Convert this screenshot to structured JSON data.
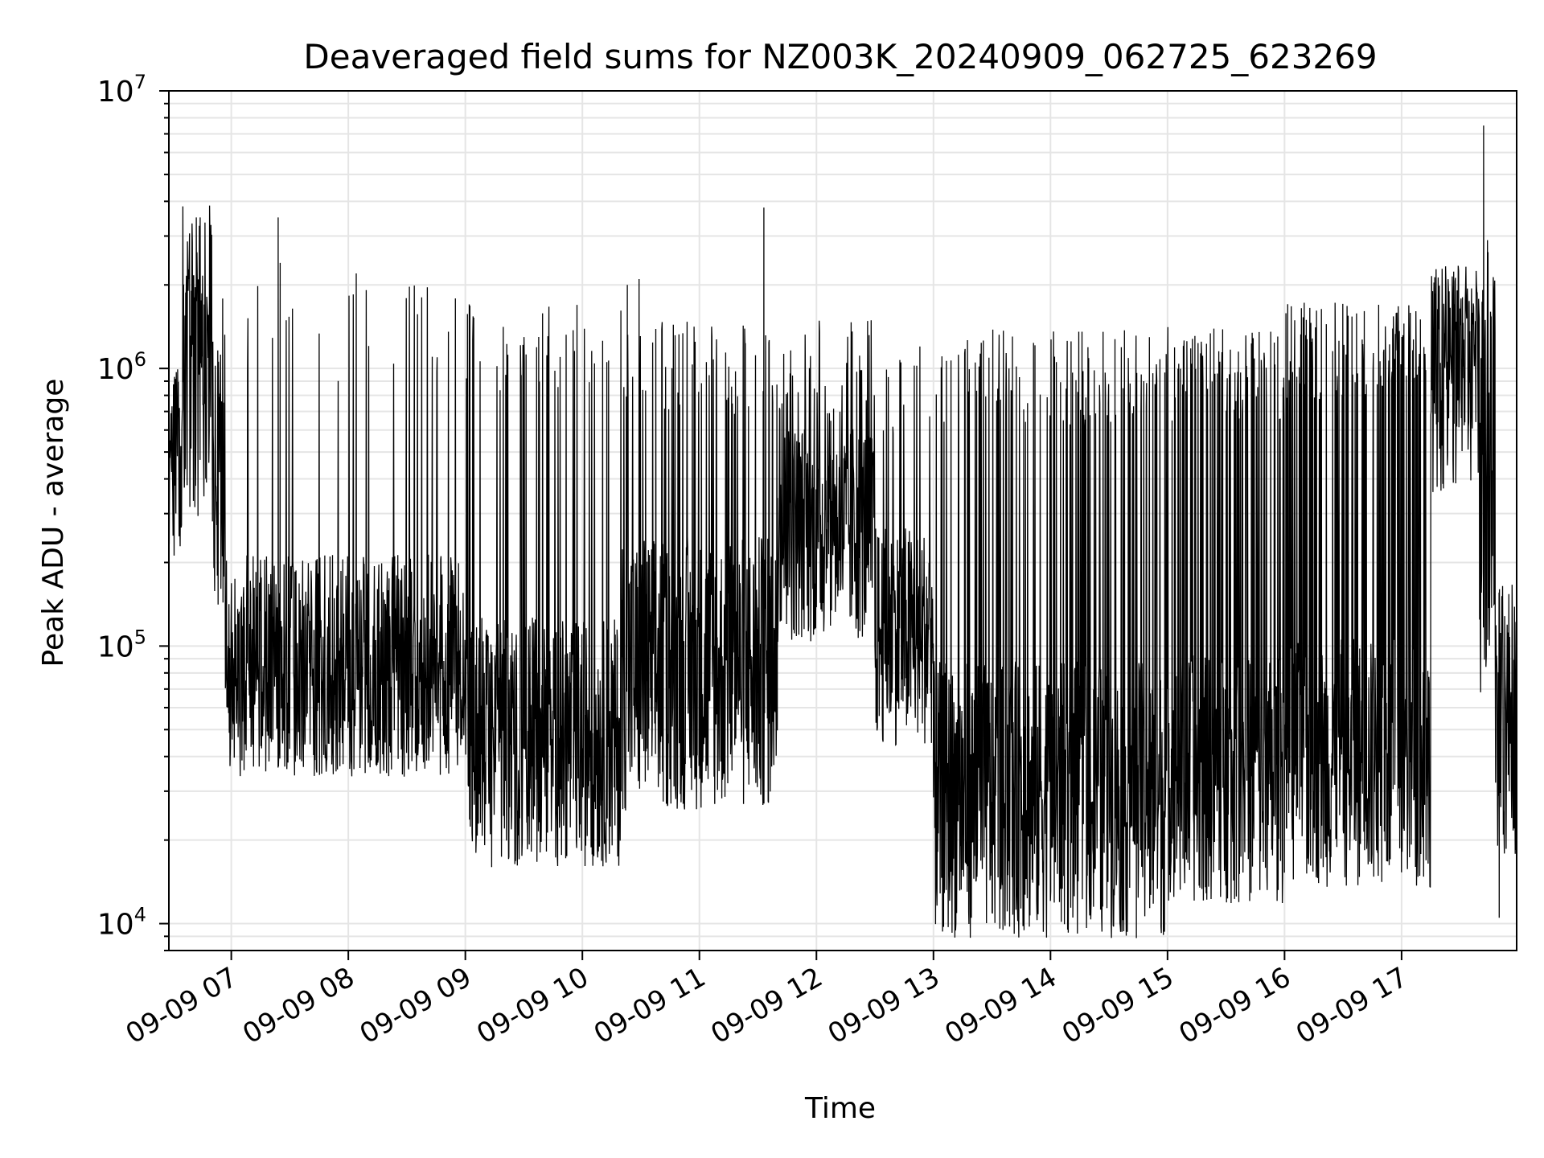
{
  "chart_data": {
    "type": "line",
    "title": "Deaveraged field sums for NZ003K_20240909_062725_623269",
    "xlabel": "Time",
    "ylabel": "Peak ADU - average",
    "yscale": "log",
    "ylim": [
      8000,
      10000000
    ],
    "xlim": [
      "2024-09-09 06:28",
      "2024-09-09 17:59"
    ],
    "grid": true,
    "line_color": "#000000",
    "grid_color": "#e5e5e5",
    "x_ticks": [
      {
        "value": "2024-09-09 07:00",
        "label": "09-09 07"
      },
      {
        "value": "2024-09-09 08:00",
        "label": "09-09 08"
      },
      {
        "value": "2024-09-09 09:00",
        "label": "09-09 09"
      },
      {
        "value": "2024-09-09 10:00",
        "label": "09-09 10"
      },
      {
        "value": "2024-09-09 11:00",
        "label": "09-09 11"
      },
      {
        "value": "2024-09-09 12:00",
        "label": "09-09 12"
      },
      {
        "value": "2024-09-09 13:00",
        "label": "09-09 13"
      },
      {
        "value": "2024-09-09 14:00",
        "label": "09-09 14"
      },
      {
        "value": "2024-09-09 15:00",
        "label": "09-09 15"
      },
      {
        "value": "2024-09-09 16:00",
        "label": "09-09 16"
      },
      {
        "value": "2024-09-09 17:00",
        "label": "09-09 17"
      }
    ],
    "y_ticks": [
      {
        "value": 10000,
        "base": "10",
        "exp": "4"
      },
      {
        "value": 100000,
        "base": "10",
        "exp": "5"
      },
      {
        "value": 1000000,
        "base": "10",
        "exp": "6"
      },
      {
        "value": 10000000,
        "base": "10",
        "exp": "7"
      }
    ],
    "series": [
      {
        "segments": [
          {
            "start": "2024-09-09 06:28",
            "end": "2024-09-09 06:35",
            "base": 450000,
            "spread": 0.35,
            "peak": 700000,
            "peak_prob": 0.2
          },
          {
            "start": "2024-09-09 06:35",
            "end": "2024-09-09 06:50",
            "base": 800000,
            "spread": 0.45,
            "peak": 2800000,
            "peak_prob": 0.3
          },
          {
            "start": "2024-09-09 06:50",
            "end": "2024-09-09 06:57",
            "base": 300000,
            "spread": 0.45,
            "peak": 1300000,
            "peak_prob": 0.2
          },
          {
            "start": "2024-09-09 06:57",
            "end": "2024-09-09 09:00",
            "base": 85000,
            "spread": 0.4,
            "peak": 1450000,
            "peak_prob": 0.05
          },
          {
            "start": "2024-09-09 09:00",
            "end": "2024-09-09 10:20",
            "base": 45000,
            "spread": 0.45,
            "peak": 1300000,
            "peak_prob": 0.09
          },
          {
            "start": "2024-09-09 10:20",
            "end": "2024-09-09 11:40",
            "base": 80000,
            "spread": 0.5,
            "peak": 1100000,
            "peak_prob": 0.14
          },
          {
            "start": "2024-09-09 11:40",
            "end": "2024-09-09 12:30",
            "base": 260000,
            "spread": 0.4,
            "peak": 1100000,
            "peak_prob": 0.1
          },
          {
            "start": "2024-09-09 12:30",
            "end": "2024-09-09 13:00",
            "base": 110000,
            "spread": 0.4,
            "peak": 900000,
            "peak_prob": 0.08
          },
          {
            "start": "2024-09-09 13:00",
            "end": "2024-09-09 15:00",
            "base": 28000,
            "spread": 0.5,
            "peak": 1000000,
            "peak_prob": 0.18
          },
          {
            "start": "2024-09-09 15:00",
            "end": "2024-09-09 16:00",
            "base": 33000,
            "spread": 0.45,
            "peak": 1050000,
            "peak_prob": 0.22
          },
          {
            "start": "2024-09-09 16:00",
            "end": "2024-09-09 17:15",
            "base": 38000,
            "spread": 0.45,
            "peak": 1250000,
            "peak_prob": 0.3
          },
          {
            "start": "2024-09-09 17:15",
            "end": "2024-09-09 17:40",
            "base": 900000,
            "spread": 0.4,
            "peak": 1700000,
            "peak_prob": 0.3
          },
          {
            "start": "2024-09-09 17:40",
            "end": "2024-09-09 17:48",
            "base": 400000,
            "spread": 0.8,
            "peak": 2000000,
            "peak_prob": 0.3
          },
          {
            "start": "2024-09-09 17:48",
            "end": "2024-09-09 17:59",
            "base": 55000,
            "spread": 0.5,
            "peak": 110000,
            "peak_prob": 0.2
          }
        ],
        "spikes": [
          {
            "t": "2024-09-09 06:42",
            "v": 3500000
          },
          {
            "t": "2024-09-09 06:44",
            "v": 3500000
          },
          {
            "t": "2024-09-09 07:24",
            "v": 3500000
          },
          {
            "t": "2024-09-09 07:25",
            "v": 2400000
          },
          {
            "t": "2024-09-09 08:04",
            "v": 2200000
          },
          {
            "t": "2024-09-09 10:23",
            "v": 2000000
          },
          {
            "t": "2024-09-09 10:29",
            "v": 2100000
          },
          {
            "t": "2024-09-09 11:33",
            "v": 3800000
          },
          {
            "t": "2024-09-09 17:42",
            "v": 7500000
          },
          {
            "t": "2024-09-09 17:44",
            "v": 2900000
          },
          {
            "t": "2024-09-09 13:18",
            "v": 11000
          },
          {
            "t": "2024-09-09 14:22",
            "v": 11500
          },
          {
            "t": "2024-09-09 17:50",
            "v": 10500
          },
          {
            "t": "2024-09-09 09:20",
            "v": 22000
          },
          {
            "t": "2024-09-09 10:18",
            "v": 22000
          }
        ]
      }
    ]
  }
}
